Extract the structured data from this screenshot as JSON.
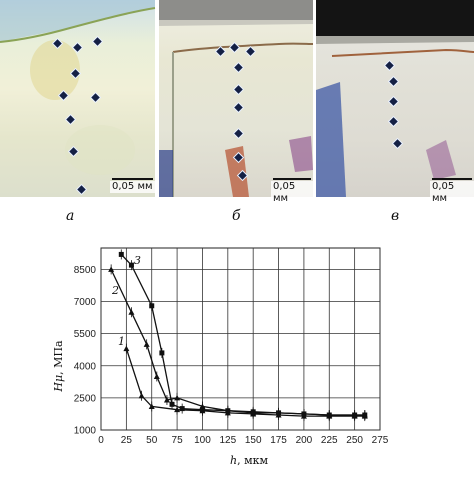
{
  "photos": [
    {
      "id": "a",
      "letter": "а",
      "scale_label": "0,05 мм"
    },
    {
      "id": "b",
      "letter": "б",
      "scale_label": "0,05 мм"
    },
    {
      "id": "c",
      "letter": "в",
      "scale_label": "0,05 мм"
    }
  ],
  "chart_data": {
    "type": "line",
    "xlabel_symbol": "h",
    "xlabel_unit": ", мкм",
    "ylabel_symbol": "Hμ",
    "ylabel_unit": ", МПа",
    "xlim": [
      0,
      275
    ],
    "ylim": [
      1000,
      9500
    ],
    "x_ticks": [
      0,
      25,
      50,
      75,
      100,
      125,
      150,
      175,
      200,
      225,
      250,
      275
    ],
    "y_ticks": [
      1000,
      2500,
      4000,
      5500,
      7000,
      8500
    ],
    "grid": true,
    "series": [
      {
        "name": "1",
        "x": [
          25,
          40,
          50,
          75,
          100,
          125,
          150,
          175,
          200,
          225,
          250,
          260
        ],
        "y": [
          4800,
          2600,
          2100,
          1950,
          1900,
          1800,
          1750,
          1700,
          1650,
          1650,
          1650,
          1650
        ]
      },
      {
        "name": "2",
        "x": [
          10,
          30,
          45,
          55,
          65,
          75,
          100,
          125,
          150,
          175,
          200,
          225,
          250,
          260
        ],
        "y": [
          8500,
          6500,
          5000,
          3500,
          2400,
          2500,
          2100,
          1900,
          1800,
          1800,
          1750,
          1700,
          1700,
          1700
        ]
      },
      {
        "name": "3",
        "x": [
          20,
          30,
          50,
          60,
          70,
          80,
          100,
          125,
          150,
          175,
          200,
          225,
          250,
          260
        ],
        "y": [
          9200,
          8700,
          6800,
          4600,
          2200,
          2000,
          1950,
          1900,
          1850,
          1800,
          1750,
          1700,
          1700,
          1700
        ]
      }
    ]
  }
}
